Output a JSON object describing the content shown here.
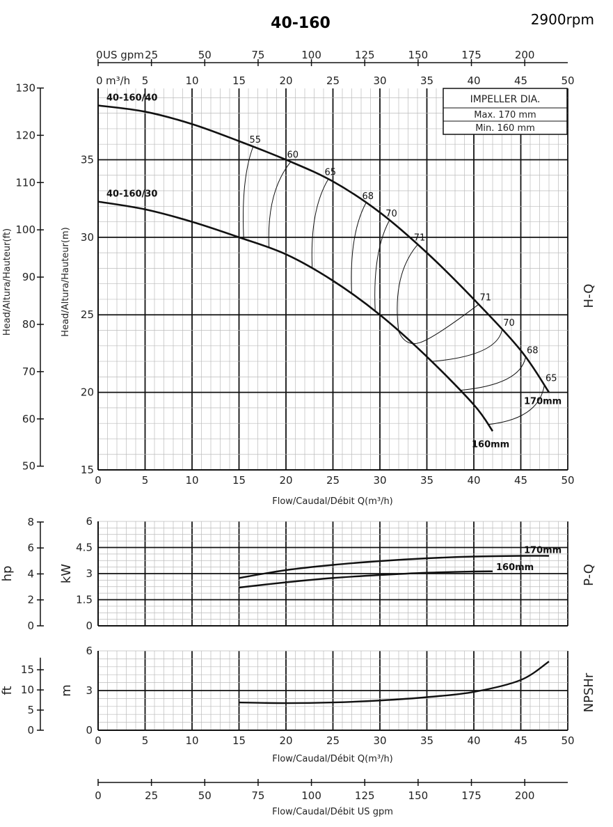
{
  "chart_data": {
    "title": "40-160",
    "speed": "2900rpm",
    "impeller": {
      "title": "IMPELLER DIA.",
      "max": "Max.  170  mm",
      "min": "Min.   160  mm"
    },
    "flow_label": "Flow/Caudal/Débit Q(m³/h)",
    "flow_label_gpm": "Flow/Caudal/Débit  US gpm",
    "x_m3h": {
      "range": [
        0,
        50
      ],
      "ticks": [
        0,
        5,
        10,
        15,
        20,
        25,
        30,
        35,
        40,
        45,
        50
      ],
      "unit": "m³/h"
    },
    "x_gpm": {
      "ticks": [
        0,
        25,
        50,
        75,
        100,
        125,
        150,
        175,
        200
      ],
      "unit": "US gpm"
    },
    "hq": {
      "type": "line",
      "section_label": "H-Q",
      "ylabel_m": "Head/Altura/Hauteur(m)",
      "ylabel_ft": "Head/Altura/Hauteur(ft)",
      "ylim": [
        15,
        39
      ],
      "y_ticks_m": [
        15,
        20,
        25,
        30,
        35
      ],
      "y_ticks_ft": [
        50,
        60,
        70,
        80,
        90,
        100,
        110,
        120,
        130
      ],
      "series": [
        {
          "name": "40-160/40",
          "end_label": "170mm",
          "points": [
            [
              0,
              38.5
            ],
            [
              5,
              38.1
            ],
            [
              10,
              37.3
            ],
            [
              15,
              36.2
            ],
            [
              20,
              35.0
            ],
            [
              25,
              33.6
            ],
            [
              30,
              31.6
            ],
            [
              35,
              29.0
            ],
            [
              40,
              26.0
            ],
            [
              45,
              22.7
            ],
            [
              48,
              20.0
            ]
          ]
        },
        {
          "name": "40-160/30",
          "end_label": "160mm",
          "points": [
            [
              0,
              32.3
            ],
            [
              5,
              31.8
            ],
            [
              10,
              31.0
            ],
            [
              15,
              30.0
            ],
            [
              20,
              28.9
            ],
            [
              25,
              27.2
            ],
            [
              30,
              25.0
            ],
            [
              35,
              22.3
            ],
            [
              40,
              19.2
            ],
            [
              42,
              17.5
            ]
          ]
        }
      ],
      "efficiency_labels": [
        "55",
        "60",
        "65",
        "68",
        "70",
        "71",
        "71",
        "70",
        "68",
        "65"
      ]
    },
    "pq": {
      "type": "line",
      "section_label": "P-Q",
      "ylabel_kw": "kW",
      "ylabel_hp": "hp",
      "ylim": [
        0,
        6
      ],
      "y_ticks_kw": [
        "0",
        "1.5",
        "3",
        "4.5",
        "6"
      ],
      "y_ticks_hp": [
        "0",
        "2",
        "4",
        "6",
        "8"
      ],
      "series": [
        {
          "name": "170mm",
          "points": [
            [
              15,
              2.75
            ],
            [
              20,
              3.2
            ],
            [
              25,
              3.5
            ],
            [
              30,
              3.72
            ],
            [
              35,
              3.88
            ],
            [
              40,
              3.98
            ],
            [
              45,
              4.02
            ],
            [
              48,
              4.02
            ]
          ]
        },
        {
          "name": "160mm",
          "points": [
            [
              15,
              2.2
            ],
            [
              20,
              2.5
            ],
            [
              25,
              2.75
            ],
            [
              30,
              2.92
            ],
            [
              35,
              3.05
            ],
            [
              40,
              3.12
            ],
            [
              42,
              3.13
            ]
          ]
        }
      ]
    },
    "npsh": {
      "type": "line",
      "section_label": "NPSHr",
      "ylabel_m": "m",
      "ylabel_ft": "ft",
      "ylim": [
        0,
        6
      ],
      "y_ticks_m": [
        "0",
        "3",
        "6"
      ],
      "y_ticks_ft": [
        "0",
        "5",
        "10",
        "15"
      ],
      "series": [
        {
          "name": "NPSHr",
          "points": [
            [
              15,
              2.1
            ],
            [
              20,
              2.05
            ],
            [
              25,
              2.1
            ],
            [
              30,
              2.25
            ],
            [
              35,
              2.5
            ],
            [
              40,
              2.9
            ],
            [
              45,
              3.8
            ],
            [
              48,
              5.2
            ]
          ]
        }
      ]
    }
  }
}
